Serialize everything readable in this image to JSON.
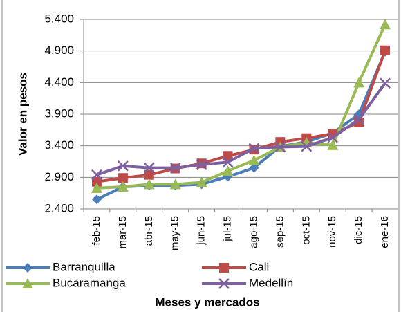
{
  "chart_data": {
    "type": "line",
    "y_label": "Valor en pesos",
    "x_label": "Meses y mercados",
    "categories": [
      "feb-15",
      "mar-15",
      "abr-15",
      "may-15",
      "jun-15",
      "jul-15",
      "ago-15",
      "sep-15",
      "oct-15",
      "nov-15",
      "dic-15",
      "ene-16"
    ],
    "series": [
      {
        "name": "Barranquilla",
        "color": "#4a7ebb",
        "marker": "diamond",
        "values": [
          2550,
          2750,
          2770,
          2770,
          2790,
          2910,
          3050,
          3390,
          3460,
          3600,
          3900,
          4890
        ]
      },
      {
        "name": "Cali",
        "color": "#be4b48",
        "marker": "square",
        "values": [
          2830,
          2890,
          2940,
          3040,
          3120,
          3240,
          3340,
          3460,
          3520,
          3590,
          3770,
          4910
        ]
      },
      {
        "name": "Bucaramanga",
        "color": "#98b954",
        "marker": "triangle",
        "values": [
          2730,
          2750,
          2790,
          2790,
          2820,
          3000,
          3170,
          3380,
          3450,
          3410,
          4400,
          5320
        ]
      },
      {
        "name": "Medellín",
        "color": "#7d60a0",
        "marker": "x",
        "values": [
          2940,
          3080,
          3050,
          3050,
          3100,
          3140,
          3360,
          3380,
          3390,
          3530,
          3820,
          4390
        ]
      }
    ],
    "ylim": [
      2400,
      5400
    ],
    "yticks": [
      {
        "value": 2400,
        "label": "2.400"
      },
      {
        "value": 2900,
        "label": "2.900"
      },
      {
        "value": 3400,
        "label": "3.400"
      },
      {
        "value": 3900,
        "label": "3.900"
      },
      {
        "value": 4400,
        "label": "4.400"
      },
      {
        "value": 4900,
        "label": "4.900"
      },
      {
        "value": 5400,
        "label": "5.400"
      }
    ],
    "grid": true
  }
}
